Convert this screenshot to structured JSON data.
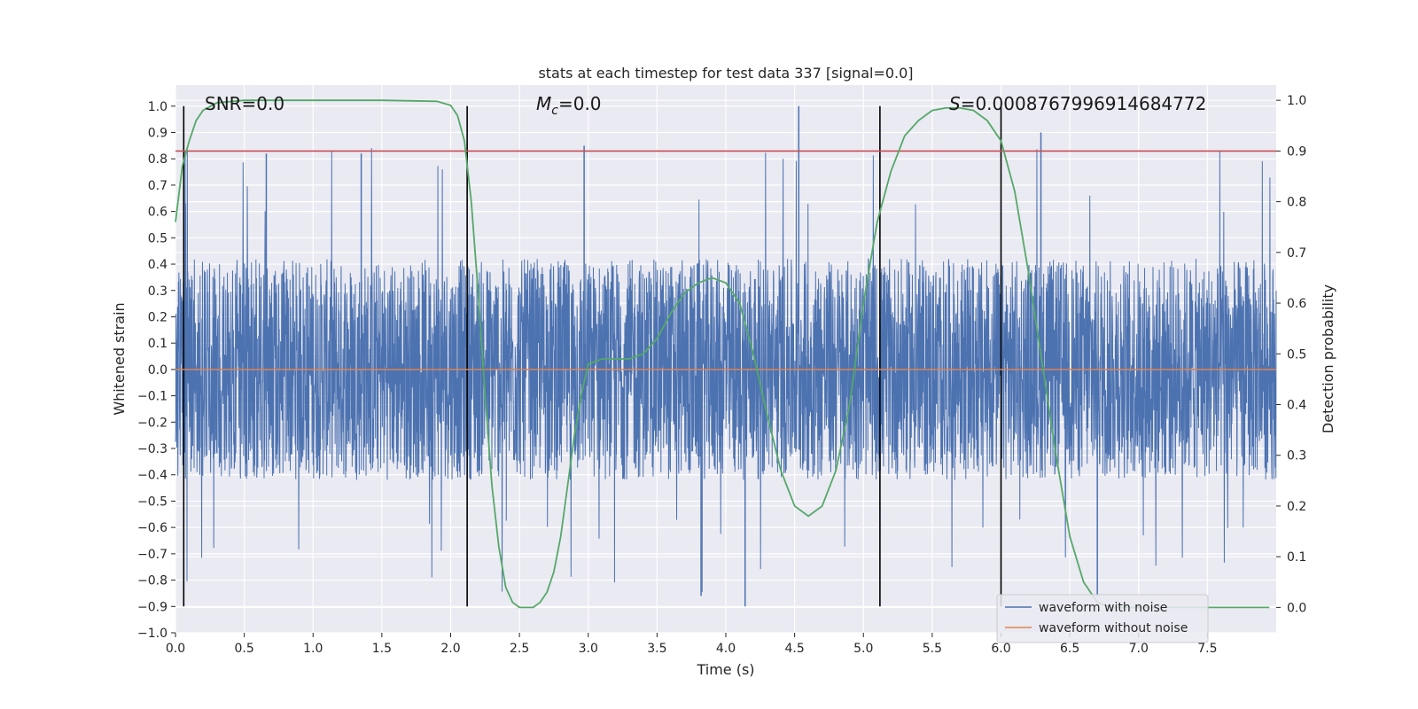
{
  "chart_data": {
    "type": "line",
    "title": "stats at each timestep for test data 337 [signal=0.0]",
    "xlabel": "Time (s)",
    "ylabel_left": "Whitened strain",
    "ylabel_right": "Detection probability",
    "xlim": [
      0.0,
      8.0
    ],
    "ylim_left": [
      -1.0,
      1.08
    ],
    "ylim_right": [
      -0.05,
      1.03
    ],
    "x_ticks": [
      "0.0",
      "0.5",
      "1.0",
      "1.5",
      "2.0",
      "2.5",
      "3.0",
      "3.5",
      "4.0",
      "4.5",
      "5.0",
      "5.5",
      "6.0",
      "6.5",
      "7.0",
      "7.5"
    ],
    "y_ticks_left": [
      "-1.0",
      "-0.9",
      "-0.8",
      "-0.7",
      "-0.6",
      "-0.5",
      "-0.4",
      "-0.3",
      "-0.2",
      "-0.1",
      "0.0",
      "0.1",
      "0.2",
      "0.3",
      "0.4",
      "0.5",
      "0.6",
      "0.7",
      "0.8",
      "0.9",
      "1.0"
    ],
    "y_ticks_right": [
      "0.0",
      "0.1",
      "0.2",
      "0.3",
      "0.4",
      "0.5",
      "0.6",
      "0.7",
      "0.8",
      "0.9",
      "1.0"
    ],
    "grid": true,
    "legend_position": "bottom-right",
    "annotations": {
      "snr": "SNR=0.0",
      "mc_sym": "M",
      "mc_sub": "c",
      "mc_val": "=0.0",
      "s_sym": "S",
      "s_val": "=0.0008767996914684772"
    },
    "threshold_right": 0.9,
    "vertical_lines_x": [
      0.06,
      2.12,
      5.12,
      6.0
    ],
    "series": [
      {
        "name": "waveform with noise",
        "color": "#4c72b0",
        "axis": "left",
        "description": "dense noisy whitened strain, amplitude mostly within +/-0.45 with peaks near 1.0 and -0.9",
        "envelope": {
          "typical": 0.42,
          "min": -0.9,
          "max": 1.0
        }
      },
      {
        "name": "waveform without noise",
        "color": "#dd8452",
        "axis": "left",
        "value": 0.0
      },
      {
        "color": "#55a868",
        "axis": "right",
        "x": [
          0.0,
          0.05,
          0.1,
          0.15,
          0.2,
          0.3,
          0.5,
          1.0,
          1.5,
          1.9,
          2.0,
          2.05,
          2.1,
          2.15,
          2.2,
          2.25,
          2.3,
          2.35,
          2.4,
          2.45,
          2.5,
          2.55,
          2.6,
          2.65,
          2.7,
          2.75,
          2.8,
          2.85,
          2.9,
          2.95,
          3.0,
          3.1,
          3.2,
          3.3,
          3.4,
          3.5,
          3.6,
          3.7,
          3.8,
          3.9,
          4.0,
          4.1,
          4.2,
          4.3,
          4.4,
          4.5,
          4.6,
          4.7,
          4.8,
          4.9,
          5.0,
          5.1,
          5.2,
          5.3,
          5.4,
          5.5,
          5.6,
          5.7,
          5.8,
          5.9,
          6.0,
          6.1,
          6.2,
          6.3,
          6.4,
          6.5,
          6.6,
          6.7,
          6.8,
          7.0,
          7.5,
          7.95
        ],
        "values": [
          0.76,
          0.87,
          0.92,
          0.96,
          0.98,
          0.995,
          1.0,
          1.0,
          1.0,
          0.998,
          0.99,
          0.97,
          0.92,
          0.8,
          0.62,
          0.42,
          0.24,
          0.12,
          0.04,
          0.01,
          0.0,
          0.0,
          0.0,
          0.01,
          0.03,
          0.07,
          0.14,
          0.24,
          0.34,
          0.42,
          0.48,
          0.49,
          0.49,
          0.49,
          0.5,
          0.53,
          0.58,
          0.62,
          0.64,
          0.65,
          0.64,
          0.6,
          0.5,
          0.38,
          0.27,
          0.2,
          0.18,
          0.2,
          0.27,
          0.4,
          0.6,
          0.76,
          0.86,
          0.93,
          0.96,
          0.98,
          0.985,
          0.985,
          0.98,
          0.96,
          0.92,
          0.82,
          0.66,
          0.48,
          0.3,
          0.14,
          0.05,
          0.01,
          0.0,
          0.0,
          0.0,
          0.0
        ]
      }
    ]
  }
}
